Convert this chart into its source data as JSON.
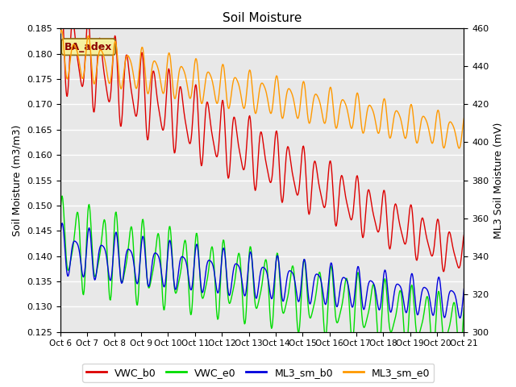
{
  "title": "Soil Moisture",
  "ylabel_left": "Soil Moisture (m3/m3)",
  "ylabel_right": "ML3 Soil Moisture (mV)",
  "ylim_left": [
    0.125,
    0.185
  ],
  "ylim_right": [
    300,
    460
  ],
  "yticks_left": [
    0.125,
    0.13,
    0.135,
    0.14,
    0.145,
    0.15,
    0.155,
    0.16,
    0.165,
    0.17,
    0.175,
    0.18,
    0.185
  ],
  "yticks_right": [
    300,
    320,
    340,
    360,
    380,
    400,
    420,
    440,
    460
  ],
  "xtick_labels": [
    "Oct 6",
    "Oct 7",
    "Oct 8",
    "Oct 9",
    "Oct 10",
    "Oct 11",
    "Oct 12",
    "Oct 13",
    "Oct 14",
    "Oct 15",
    "Oct 16",
    "Oct 17",
    "Oct 18",
    "Oct 19",
    "Oct 20",
    "Oct 21"
  ],
  "colors": {
    "VWC_b0": "#dd0000",
    "VWC_e0": "#00dd00",
    "ML3_sm_b0": "#0000dd",
    "ML3_sm_e0": "#ff9900"
  },
  "bg_color": "#e8e8e8",
  "grid_color": "#ffffff",
  "legend_labels": [
    "VWC_b0",
    "VWC_e0",
    "ML3_sm_b0",
    "ML3_sm_e0"
  ],
  "annotation_text": "BA_adex",
  "figsize": [
    6.4,
    4.8
  ],
  "dpi": 100
}
